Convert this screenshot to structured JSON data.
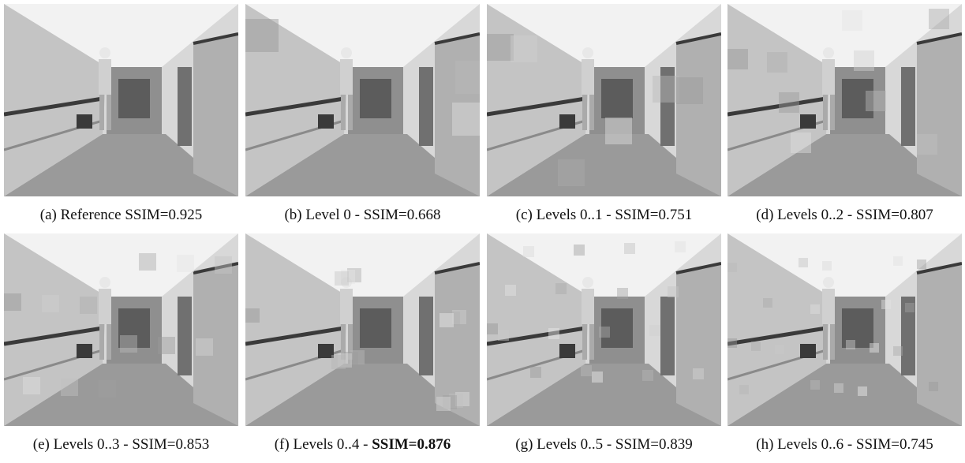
{
  "figure": {
    "panels": [
      {
        "label": "(a)",
        "text": "Reference SSIM=",
        "ssim": "0.925",
        "bold": false,
        "blocks": 0
      },
      {
        "label": "(b)",
        "text": "Level 0 - SSIM=",
        "ssim": "0.668",
        "bold": false,
        "blocks": 1
      },
      {
        "label": "(c)",
        "text": "Levels 0..1 - SSIM=",
        "ssim": "0.751",
        "bold": false,
        "blocks": 2
      },
      {
        "label": "(d)",
        "text": "Levels 0..2 - SSIM=",
        "ssim": "0.807",
        "bold": false,
        "blocks": 3
      },
      {
        "label": "(e)",
        "text": "Levels 0..3 - SSIM=",
        "ssim": "0.853",
        "bold": false,
        "blocks": 4
      },
      {
        "label": "(f)",
        "text": "Levels 0..4 - ",
        "ssim": "SSIM=0.876",
        "bold": true,
        "blocks": 5
      },
      {
        "label": "(g)",
        "text": "Levels 0..5 - SSIM=",
        "ssim": "0.839",
        "bold": false,
        "blocks": 6
      },
      {
        "label": "(h)",
        "text": "Levels 0..6 - SSIM=",
        "ssim": "0.745",
        "bold": false,
        "blocks": 7
      }
    ],
    "colors": {
      "wall": "#d8d8d8",
      "floor": "#9a9a9a",
      "door": "#707070",
      "dark": "#3a3a3a",
      "ceiling": "#f2f2f2"
    }
  }
}
